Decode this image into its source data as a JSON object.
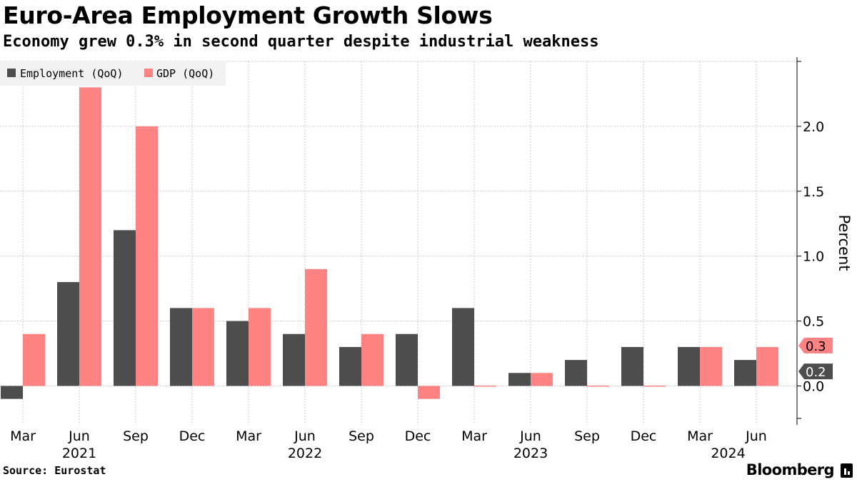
{
  "header": {
    "title": "Euro-Area Employment Growth Slows",
    "subtitle": "Economy grew 0.3% in second quarter despite industrial weakness"
  },
  "footer": {
    "source": "Source: Eurostat",
    "brand": "Bloomberg"
  },
  "colors": {
    "employment": "#4d4d4d",
    "gdp": "#ff8383",
    "grid": "#c8c8c8",
    "legend_bg": "#f2f2f2"
  },
  "chart_data": {
    "type": "bar",
    "title": "Euro-Area Employment Growth Slows",
    "subtitle": "Economy grew 0.3% in second quarter despite industrial weakness",
    "categories": [
      "Mar",
      "Jun",
      "Sep",
      "Dec",
      "Mar",
      "Jun",
      "Sep",
      "Dec",
      "Mar",
      "Jun",
      "Sep",
      "Dec",
      "Mar",
      "Jun"
    ],
    "year_labels": [
      {
        "label": "2021",
        "category_index": 1
      },
      {
        "label": "2022",
        "category_index": 5
      },
      {
        "label": "2023",
        "category_index": 9
      },
      {
        "label": "2024",
        "category_index": 12.5
      }
    ],
    "series": [
      {
        "name": "Employment (QoQ)",
        "values": [
          -0.1,
          0.8,
          1.2,
          0.6,
          0.5,
          0.4,
          0.3,
          0.4,
          0.6,
          0.1,
          0.2,
          0.3,
          0.3,
          0.2
        ]
      },
      {
        "name": "GDP (QoQ)",
        "values": [
          0.4,
          2.3,
          2.0,
          0.6,
          0.6,
          0.9,
          0.4,
          -0.1,
          0.0,
          0.1,
          0.0,
          0.0,
          0.3,
          0.3
        ]
      }
    ],
    "ylabel": "Percent",
    "xlabel": "",
    "ylim": [
      -0.3,
      2.5
    ],
    "yticks": [
      0.0,
      0.5,
      1.0,
      1.5,
      2.0
    ],
    "ytick_labels": [
      "0.0",
      "0.5",
      "1.0",
      "1.5",
      "2.0"
    ],
    "end_labels": [
      {
        "series": "GDP (QoQ)",
        "text": "0.3"
      },
      {
        "series": "Employment (QoQ)",
        "text": "0.2"
      }
    ],
    "grid": true,
    "legend_position": "top-left"
  }
}
